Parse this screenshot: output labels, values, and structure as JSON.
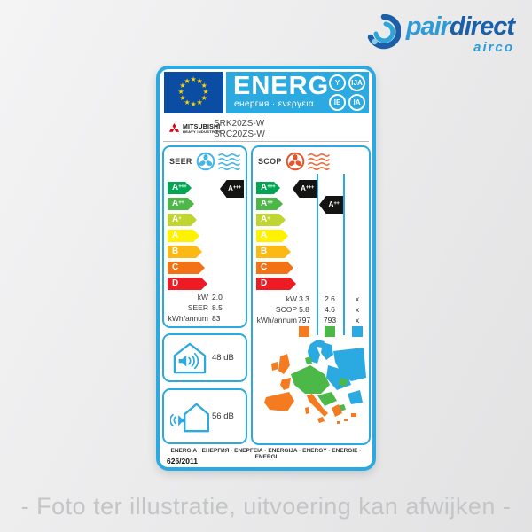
{
  "site": {
    "logo": {
      "word_primary": "pair",
      "word_secondary": "direct",
      "tagline": "airco",
      "color_primary": "#2E9BD6",
      "color_secondary": "#1A5FA8"
    },
    "caption": "- Foto ter illustratie, uitvoering kan afwijken -"
  },
  "label": {
    "header": {
      "title": "ENERG",
      "subtitle": "енергия · ενεργεια",
      "suffixes": [
        "Y",
        "IJA",
        "IE",
        "IA"
      ],
      "banner_color": "#2BA9E1",
      "flag_color": "#0B4DA2",
      "star_color": "#FFD500"
    },
    "brand": {
      "name": "MITSUBISHI",
      "sub": "HEAVY INDUSTRIES",
      "mark_color": "#E60012",
      "models": [
        "SRK20ZS-W",
        "SRC20ZS-W"
      ]
    },
    "scale": [
      {
        "grade": "A",
        "sup": "+++",
        "color": "#00A651"
      },
      {
        "grade": "A",
        "sup": "++",
        "color": "#4DB848"
      },
      {
        "grade": "A",
        "sup": "+",
        "color": "#BFD630"
      },
      {
        "grade": "A",
        "sup": "",
        "color": "#FFF200"
      },
      {
        "grade": "B",
        "sup": "",
        "color": "#FDB913"
      },
      {
        "grade": "C",
        "sup": "",
        "color": "#F47216"
      },
      {
        "grade": "D",
        "sup": "",
        "color": "#ED1C24"
      }
    ],
    "seer": {
      "title": "SEER",
      "rating": {
        "grade": "A",
        "sup": "+++",
        "row": 0
      },
      "rows": [
        {
          "label": "kW",
          "value": "2.0"
        },
        {
          "label": "SEER",
          "value": "8.5"
        },
        {
          "label": "kWh/annum",
          "value": "83"
        }
      ]
    },
    "scop": {
      "title": "SCOP",
      "ratings": [
        {
          "grade": "A",
          "sup": "+++",
          "row": 0,
          "column": 0
        },
        {
          "grade": "A",
          "sup": "++",
          "row": 1,
          "column": 1
        }
      ],
      "rows": [
        {
          "label": "kW",
          "values": [
            "3.3",
            "2.6",
            "x"
          ]
        },
        {
          "label": "SCOP",
          "values": [
            "5.8",
            "4.6",
            "x"
          ]
        },
        {
          "label": "kWh/annum",
          "values": [
            "797",
            "793",
            "x"
          ]
        }
      ],
      "zone_colors": [
        "#F47B20",
        "#4CB848",
        "#2BA9E1"
      ]
    },
    "noise": [
      {
        "name": "indoor",
        "value": "48 dB"
      },
      {
        "name": "outdoor",
        "value": "56 dB"
      }
    ],
    "footer": {
      "languages": "ENERGIA · ЕНЕРГИЯ · ΕΝΕΡΓΕΙΑ · ENERGIJA · ENERGY · ENERGIE · ENERGI",
      "regulation": "626/2011"
    }
  },
  "icons": {
    "logo_swirl": "logo-swirl-icon",
    "eu_flag": "eu-flag",
    "mitsubishi_mark": "mitsubishi-mark-icon",
    "cool_fan": "cool-fan-icon",
    "heat_fan": "heat-fan-icon",
    "airflow_waves": "airflow-waves-icon",
    "indoor_noise": "house-indoor-noise-icon",
    "outdoor_noise": "house-outdoor-noise-icon",
    "climate_map": "europe-climate-map"
  }
}
